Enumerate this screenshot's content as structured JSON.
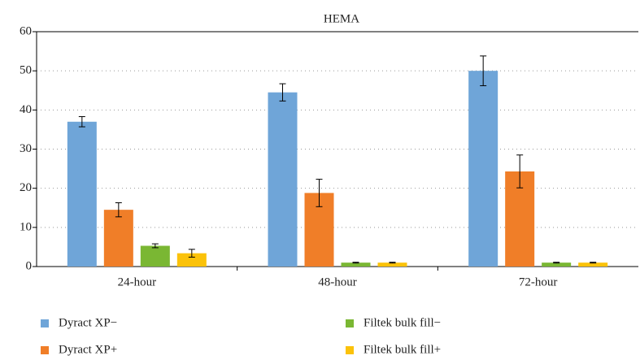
{
  "chart_data": {
    "type": "bar",
    "title": "HEMA",
    "categories": [
      "24-hour",
      "48-hour",
      "72-hour"
    ],
    "series": [
      {
        "name": "Dyract XP−",
        "color": "#6fa5d8",
        "values": [
          37,
          44.5,
          50
        ],
        "errors": [
          1.3,
          2.2,
          3.8
        ]
      },
      {
        "name": "Dyract XP+",
        "color": "#f07e28",
        "values": [
          14.5,
          18.8,
          24.3
        ],
        "errors": [
          1.8,
          3.5,
          4.2
        ]
      },
      {
        "name": "Filtek bulk fill−",
        "color": "#7ab733",
        "values": [
          5.3,
          1,
          1
        ],
        "errors": [
          0.5,
          0.1,
          0.1
        ]
      },
      {
        "name": "Filtek bulk fill+",
        "color": "#fbc20a",
        "values": [
          3.4,
          1,
          1
        ],
        "errors": [
          1,
          0.1,
          0.1
        ]
      }
    ],
    "ylim": [
      0,
      60
    ],
    "yticks": [
      0,
      10,
      20,
      30,
      40,
      50,
      60
    ],
    "grid": true
  }
}
